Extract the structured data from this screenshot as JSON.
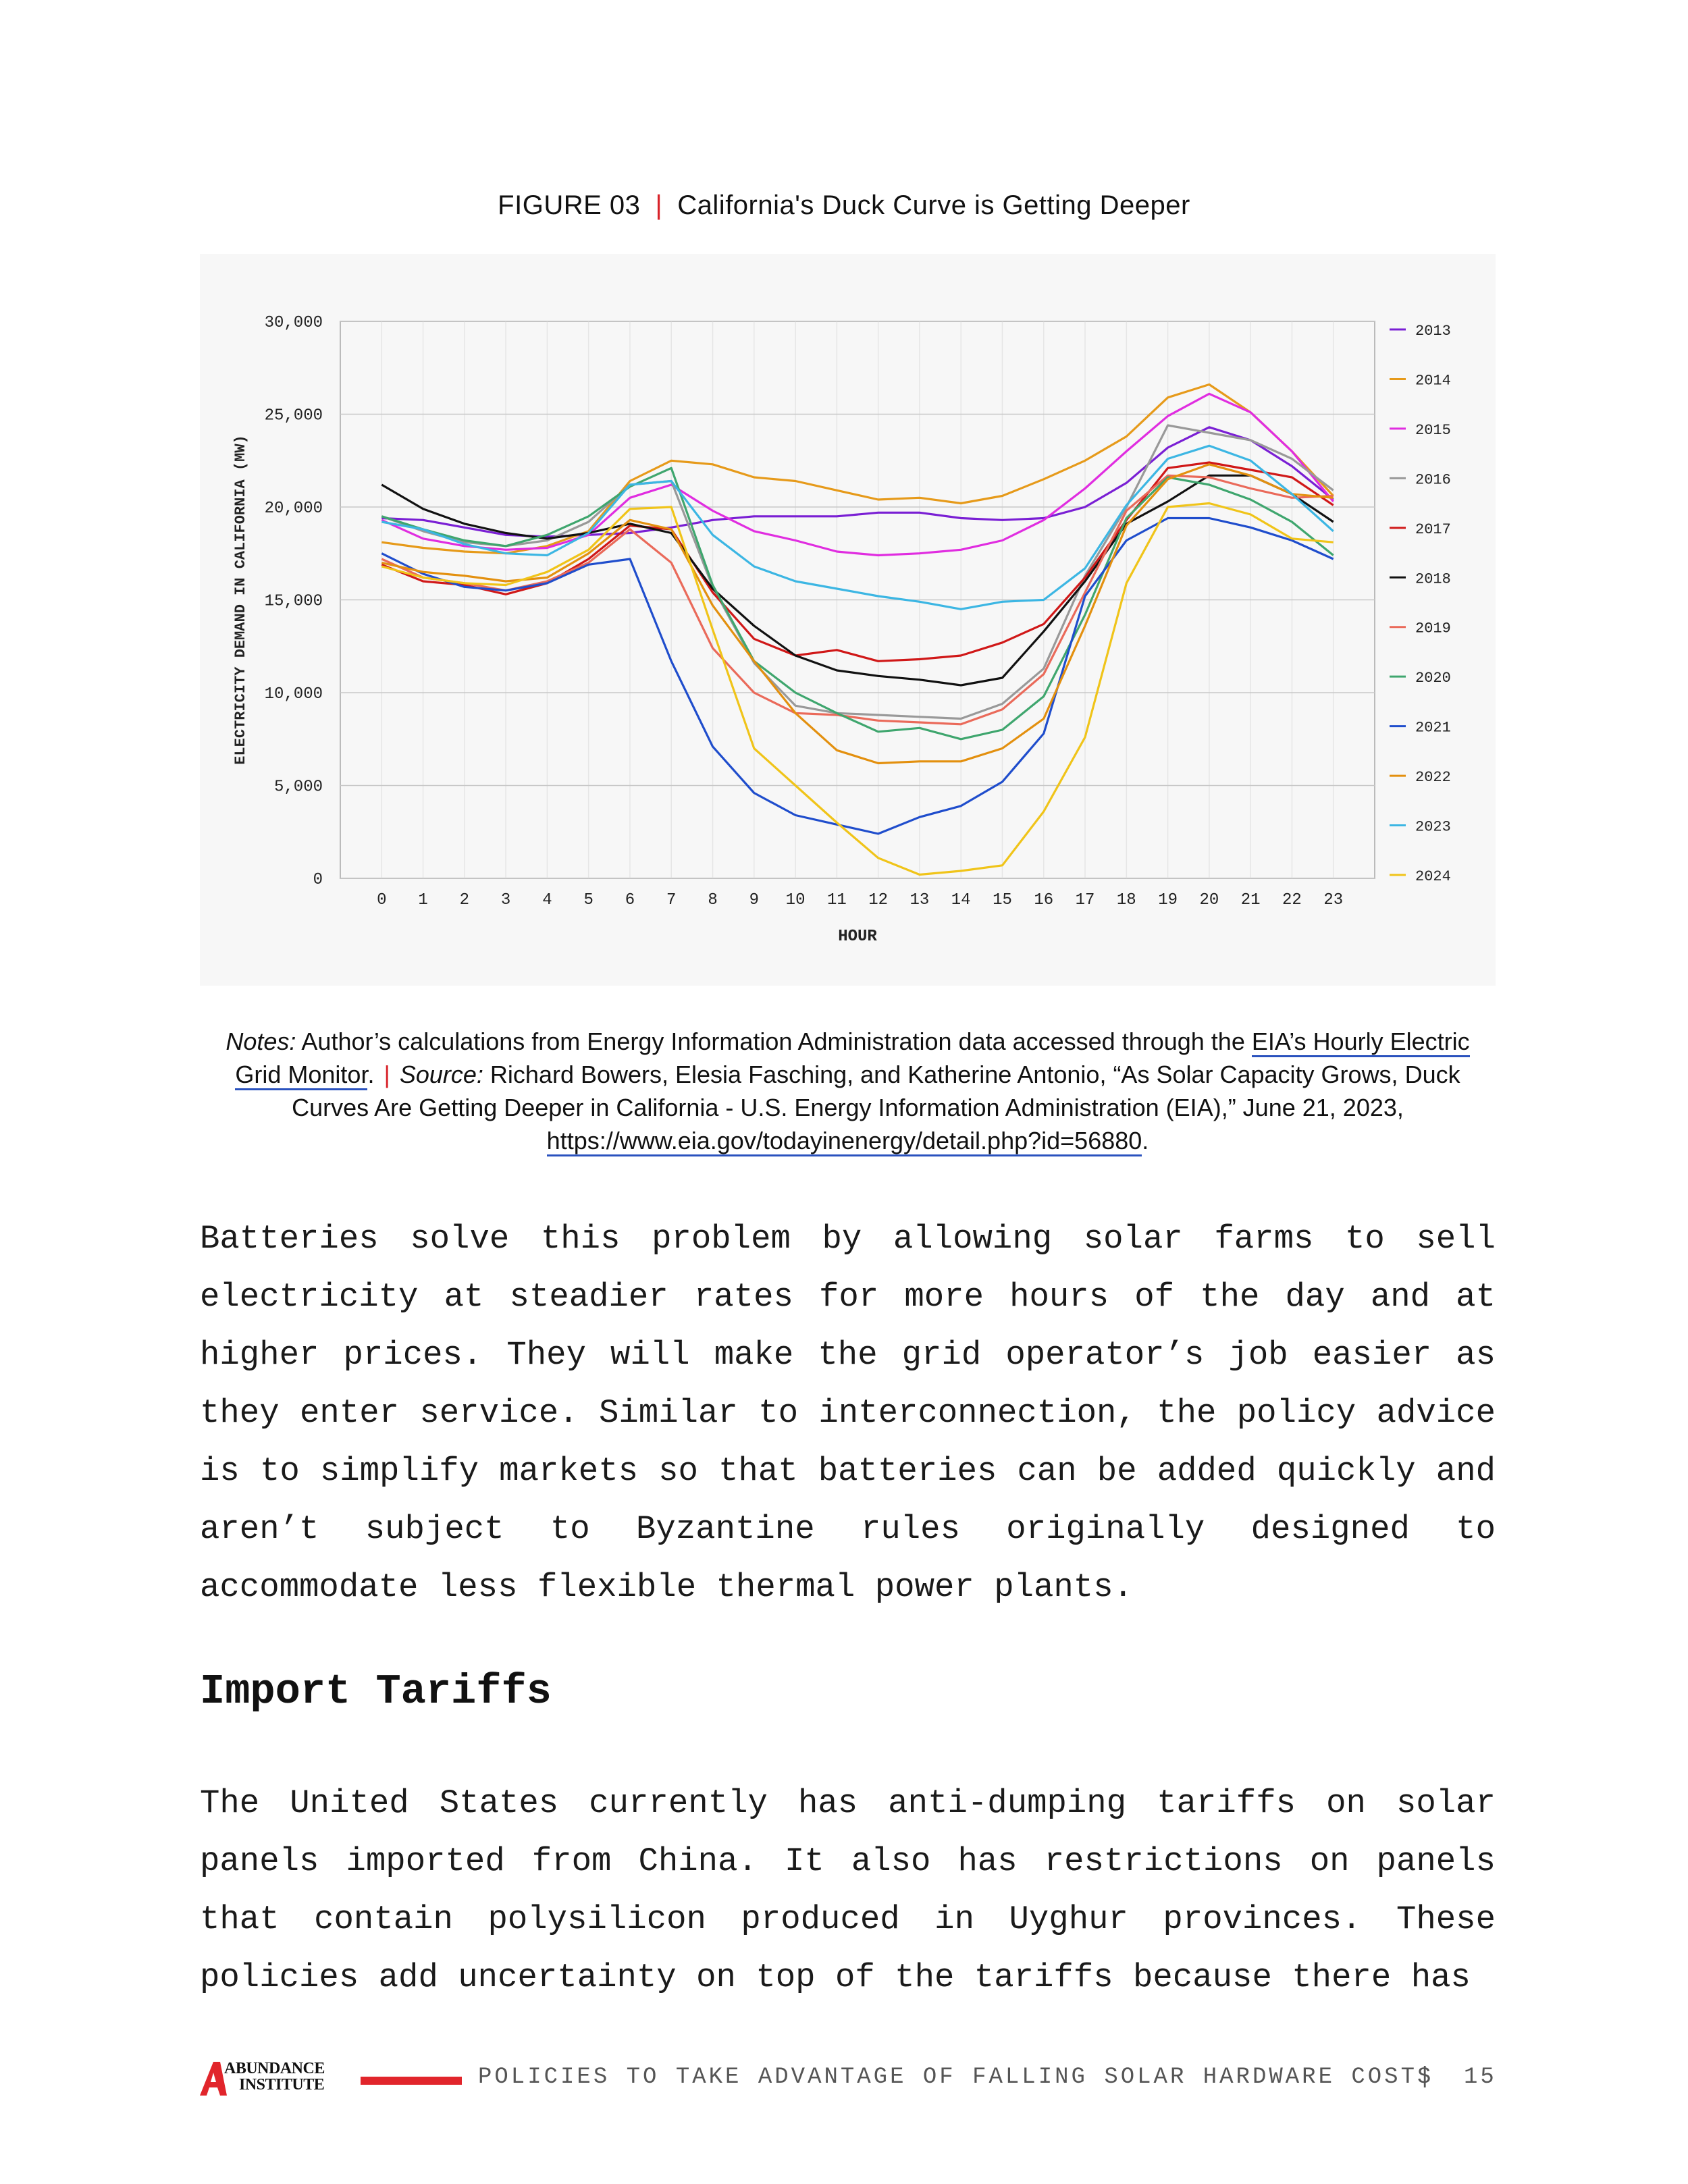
{
  "figure": {
    "label": "FIGURE 03",
    "separator": "|",
    "title": "California's Duck Curve is Getting Deeper"
  },
  "chart_data": {
    "type": "line",
    "xlabel": "HOUR",
    "ylabel": "ELECTRICITY DEMAND IN CALIFORNIA (MW)",
    "ylim": [
      0,
      30000
    ],
    "y_ticks": [
      "0",
      "5,000",
      "10,000",
      "15,000",
      "20,000",
      "25,000",
      "30,000"
    ],
    "x": [
      0,
      1,
      2,
      3,
      4,
      5,
      6,
      7,
      8,
      9,
      10,
      11,
      12,
      13,
      14,
      15,
      16,
      17,
      18,
      19,
      20,
      21,
      22,
      23
    ],
    "x_ticks": [
      "0",
      "1",
      "2",
      "3",
      "4",
      "5",
      "6",
      "7",
      "8",
      "9",
      "10",
      "11",
      "12",
      "13",
      "14",
      "15",
      "16",
      "17",
      "18",
      "19",
      "20",
      "21",
      "22",
      "23"
    ],
    "grid": true,
    "legend_position": "right",
    "series": [
      {
        "name": "2013",
        "color": "#7a1fd4",
        "values": [
          19400,
          19300,
          18900,
          18500,
          18400,
          18500,
          18600,
          18900,
          19300,
          19500,
          19500,
          19500,
          19700,
          19700,
          19400,
          19300,
          19400,
          20000,
          21300,
          23200,
          24300,
          23600,
          22200,
          20400
        ]
      },
      {
        "name": "2014",
        "color": "#e69a1a",
        "values": [
          18100,
          17800,
          17600,
          17500,
          17900,
          18700,
          21400,
          22500,
          22300,
          21600,
          21400,
          20900,
          20400,
          20500,
          20200,
          20600,
          21500,
          22500,
          23800,
          25900,
          26600,
          25100,
          23000,
          20600
        ]
      },
      {
        "name": "2015",
        "color": "#e02de0",
        "values": [
          19300,
          18300,
          17900,
          17700,
          17800,
          18500,
          20500,
          21200,
          19800,
          18700,
          18200,
          17600,
          17400,
          17500,
          17700,
          18200,
          19300,
          21000,
          23000,
          24900,
          26100,
          25100,
          23000,
          20300
        ]
      },
      {
        "name": "2016",
        "color": "#999999",
        "values": [
          19500,
          18700,
          18100,
          17900,
          18200,
          19200,
          21200,
          21400,
          15700,
          11600,
          9300,
          8900,
          8800,
          8700,
          8600,
          9400,
          11300,
          16300,
          20000,
          24400,
          24000,
          23600,
          22600,
          20900
        ]
      },
      {
        "name": "2017",
        "color": "#d01818",
        "values": [
          16900,
          16000,
          15800,
          15300,
          15900,
          17200,
          19000,
          18800,
          15400,
          12900,
          12000,
          12300,
          11700,
          11800,
          12000,
          12700,
          13700,
          16200,
          19300,
          22100,
          22400,
          22000,
          21600,
          20100
        ]
      },
      {
        "name": "2018",
        "color": "#111111",
        "values": [
          21200,
          19900,
          19100,
          18600,
          18300,
          18600,
          19100,
          18600,
          15600,
          13600,
          12000,
          11200,
          10900,
          10700,
          10400,
          10800,
          13300,
          16000,
          19100,
          20300,
          21700,
          21700,
          20700,
          19200
        ]
      },
      {
        "name": "2019",
        "color": "#ea6a5a",
        "values": [
          17200,
          16200,
          15900,
          15500,
          16000,
          17000,
          18800,
          17000,
          12400,
          10000,
          8900,
          8800,
          8500,
          8400,
          8300,
          9100,
          11000,
          15400,
          19800,
          21700,
          21600,
          21000,
          20500,
          20600
        ]
      },
      {
        "name": "2020",
        "color": "#3fa66e",
        "values": [
          19500,
          18800,
          18200,
          17900,
          18500,
          19500,
          21100,
          22100,
          15800,
          11700,
          10000,
          8900,
          7900,
          8100,
          7500,
          8000,
          9800,
          14200,
          19400,
          21600,
          21200,
          20400,
          19200,
          17400
        ]
      },
      {
        "name": "2021",
        "color": "#1f4dcc",
        "values": [
          17500,
          16400,
          15700,
          15500,
          15900,
          16900,
          17200,
          11700,
          7100,
          4600,
          3400,
          2900,
          2400,
          3300,
          3900,
          5200,
          7800,
          15200,
          18200,
          19400,
          19400,
          18900,
          18200,
          17200
        ]
      },
      {
        "name": "2022",
        "color": "#e3900f",
        "values": [
          17000,
          16500,
          16300,
          16000,
          16200,
          17500,
          19300,
          18800,
          14700,
          11700,
          8900,
          6900,
          6200,
          6300,
          6300,
          7000,
          8600,
          13600,
          19000,
          21500,
          22300,
          21700,
          20700,
          20500
        ]
      },
      {
        "name": "2023",
        "color": "#3cb6e3",
        "values": [
          19200,
          18800,
          18000,
          17500,
          17400,
          18600,
          21200,
          21400,
          18500,
          16800,
          16000,
          15600,
          15200,
          14900,
          14500,
          14900,
          15000,
          16700,
          20100,
          22600,
          23300,
          22500,
          20700,
          18700
        ]
      },
      {
        "name": "2024",
        "color": "#f0c419",
        "values": [
          16800,
          16200,
          15900,
          15800,
          16500,
          17700,
          19900,
          20000,
          13400,
          7000,
          5000,
          3000,
          1100,
          200,
          400,
          700,
          3600,
          7600,
          15900,
          20000,
          20200,
          19600,
          18300,
          18100
        ]
      }
    ]
  },
  "notes": {
    "notes_label": "Notes:",
    "notes_text": " Author’s calculations from Energy Information Administration data accessed through the ",
    "notes_link": "EIA’s Hourly Electric Grid Monitor",
    "notes_end": ".",
    "separator": "|",
    "source_label": "Source:",
    "source_text": " Richard Bowers, Elesia Fasching, and Katherine Antonio, “As Solar Capacity Grows, Duck Curves Are Getting Deeper in California - U.S. Energy Information Administration (EIA),” June 21, 2023, ",
    "source_link": "https://www.eia.gov/todayinenergy/detail.php?id=56880",
    "source_end": "."
  },
  "paragraph_1": "Batteries solve this problem by allowing solar farms to sell electricity at steadier rates for more hours of the day and at higher prices. They will make the grid operator’s job easier as they enter service. Similar to interconnection, the policy advice is to simplify markets so that batteries can be added quickly and aren’t subject to Byzantine rules originally designed to accommodate less flexible thermal power plants.",
  "heading": "Import Tariffs",
  "paragraph_2": "The United States currently has anti-dumping tariffs on solar panels imported from China. It also has restrictions on panels that contain polysilicon produced in Uyghur provinces. These policies add uncertainty on top of the tariffs because there has",
  "footer": {
    "logo_line1": "ABUNDANCE",
    "logo_line2": "INSTITUTE",
    "running_title": "POLICIES TO TAKE ADVANTAGE OF FALLING SOLAR HARDWARE COSTS",
    "separator": "|",
    "page_number": "15",
    "accent_color": "#e1252b"
  }
}
